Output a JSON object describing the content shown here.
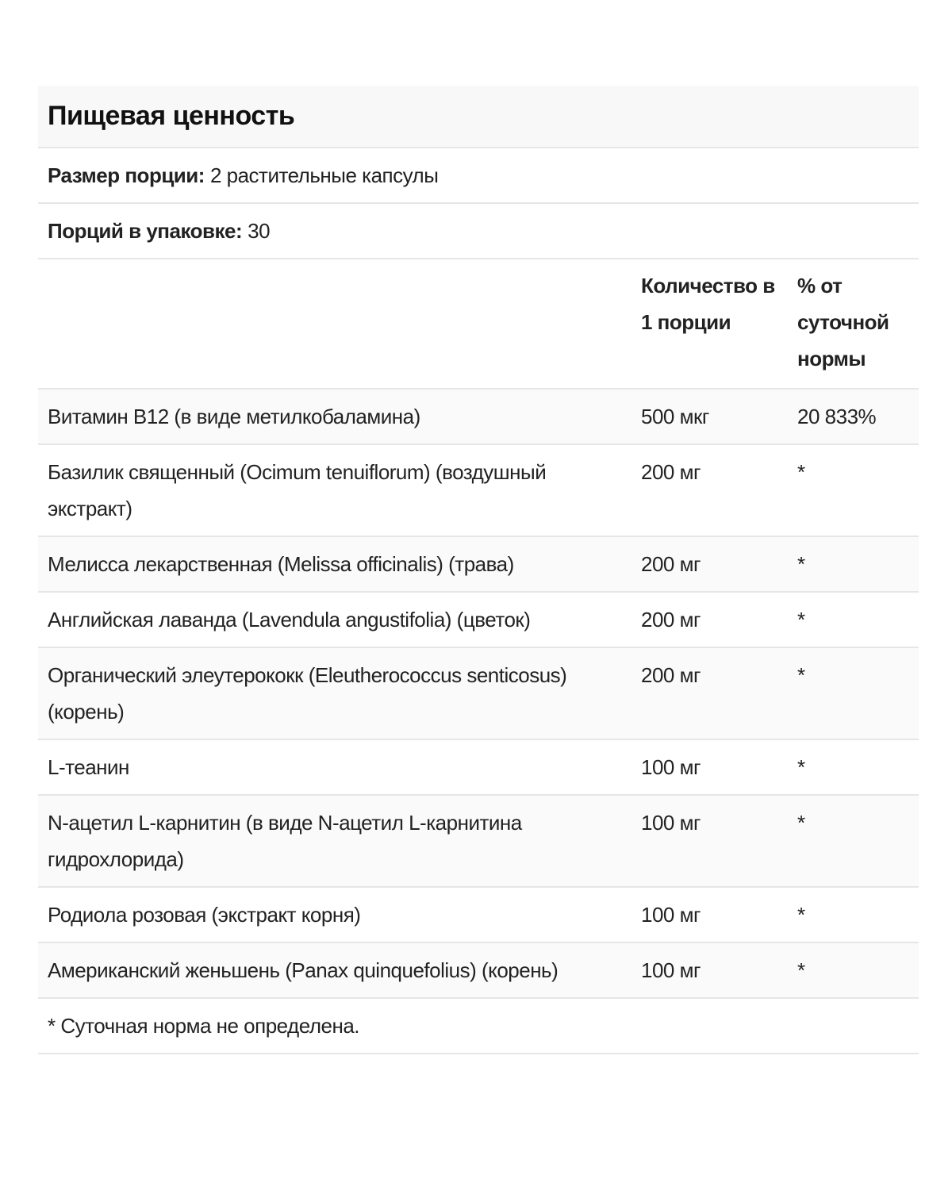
{
  "title": "Пищевая ценность",
  "serving_size": {
    "label": "Размер порции:",
    "value": "2 растительные капсулы"
  },
  "servings_per_container": {
    "label": "Порций в упаковке:",
    "value": "30"
  },
  "columns": {
    "amount": "Количество в 1 порции",
    "dv": "% от суточной нормы"
  },
  "rows": [
    {
      "name": "Витамин B12 (в виде метилкобаламина)",
      "amount": "500 мкг",
      "dv": "20 833%"
    },
    {
      "name": "Базилик священный (Ocimum tenuiflorum) (воздушный экстракт)",
      "amount": "200 мг",
      "dv": "*"
    },
    {
      "name": "Мелисса лекарственная (Melissa officinalis) (трава)",
      "amount": "200 мг",
      "dv": "*"
    },
    {
      "name": "Английская лаванда (Lavendula angustifolia) (цветок)",
      "amount": "200 мг",
      "dv": "*"
    },
    {
      "name": "Органический элеутерококк (Eleutherococcus senticosus) (корень)",
      "amount": "200 мг",
      "dv": "*"
    },
    {
      "name": "L-теанин",
      "amount": "100 мг",
      "dv": "*"
    },
    {
      "name": "N-ацетил L-карнитин (в виде N-ацетил L-карнитина гидрохлорида)",
      "amount": "100 мг",
      "dv": "*"
    },
    {
      "name": "Родиола розовая (экстракт корня)",
      "amount": "100 мг",
      "dv": "*"
    },
    {
      "name": "Американский женьшень (Panax quinquefolius) (корень)",
      "amount": "100 мг",
      "dv": "*"
    }
  ],
  "footnote": "* Суточная норма не определена."
}
